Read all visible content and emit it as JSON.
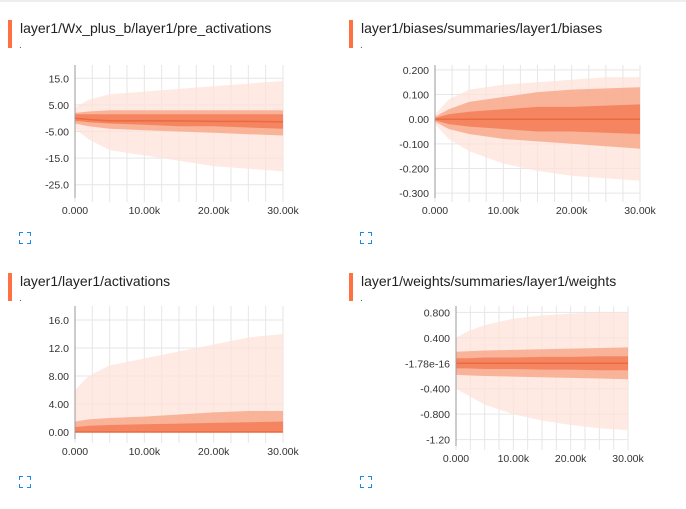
{
  "colors": {
    "accent": "#ff7043",
    "band_outer": "#fde2da",
    "band_mid": "#f8a98c",
    "band_inner": "#f4805b",
    "median": "#ec6a3f",
    "grid": "#e6e6e6",
    "axis": "#999999"
  },
  "icons": {
    "expand": "fullscreen-expand-icon"
  },
  "chart_data": [
    {
      "type": "area",
      "title": "layer1/Wx_plus_b/layer1/pre_activations",
      "subtitle": ".",
      "x_ticks": [
        "0.000",
        "10.00k",
        "20.00k",
        "30.00k"
      ],
      "y_ticks": [
        "15.0",
        "5.00",
        "-5.00",
        "-15.0",
        "-25.0"
      ],
      "y_tick_values": [
        15,
        5,
        -5,
        -15,
        -25
      ],
      "xlim": [
        0,
        30000
      ],
      "ylim": [
        -30,
        20
      ],
      "x": [
        0,
        2000,
        5000,
        10000,
        15000,
        20000,
        25000,
        30000
      ],
      "bands": [
        {
          "lower": [
            -4,
            -8,
            -12,
            -14,
            -16,
            -18,
            -19,
            -20
          ],
          "upper": [
            4,
            7,
            9,
            10,
            11,
            12,
            13,
            14
          ]
        },
        {
          "lower": [
            -2,
            -3,
            -4,
            -4.5,
            -5,
            -5.5,
            -6,
            -6.5
          ],
          "upper": [
            2,
            2.5,
            3,
            3,
            3,
            3,
            3,
            3
          ]
        },
        {
          "lower": [
            -1,
            -1.5,
            -2,
            -2.5,
            -3,
            -3,
            -3.5,
            -4
          ],
          "upper": [
            1.5,
            1.5,
            1.5,
            1.5,
            1.5,
            1.5,
            1.5,
            1.5
          ]
        }
      ],
      "median": [
        0,
        -0.5,
        -1,
        -1,
        -1,
        -1.2,
        -1.2,
        -1.3
      ]
    },
    {
      "type": "area",
      "title": "layer1/biases/summaries/layer1/biases",
      "subtitle": ".",
      "x_ticks": [
        "0.000",
        "10.00k",
        "20.00k",
        "30.00k"
      ],
      "y_ticks": [
        "0.200",
        "0.100",
        "0.00",
        "-0.100",
        "-0.200",
        "-0.300"
      ],
      "y_tick_values": [
        0.2,
        0.1,
        0,
        -0.1,
        -0.2,
        -0.3
      ],
      "xlim": [
        0,
        30000
      ],
      "ylim": [
        -0.32,
        0.22
      ],
      "x": [
        0,
        2000,
        5000,
        10000,
        15000,
        20000,
        25000,
        30000
      ],
      "bands": [
        {
          "lower": [
            -0.02,
            -0.08,
            -0.13,
            -0.18,
            -0.21,
            -0.23,
            -0.24,
            -0.25
          ],
          "upper": [
            0.02,
            0.08,
            0.12,
            0.14,
            0.15,
            0.16,
            0.17,
            0.17
          ]
        },
        {
          "lower": [
            -0.01,
            -0.04,
            -0.06,
            -0.08,
            -0.09,
            -0.1,
            -0.11,
            -0.12
          ],
          "upper": [
            0.01,
            0.04,
            0.07,
            0.09,
            0.11,
            0.12,
            0.125,
            0.13
          ]
        },
        {
          "lower": [
            -0.005,
            -0.02,
            -0.03,
            -0.04,
            -0.05,
            -0.05,
            -0.055,
            -0.06
          ],
          "upper": [
            0.005,
            0.02,
            0.03,
            0.04,
            0.05,
            0.05,
            0.055,
            0.06
          ]
        }
      ],
      "median": [
        0,
        0,
        0,
        0,
        0,
        0,
        0,
        0
      ]
    },
    {
      "type": "area",
      "title": "layer1/layer1/activations",
      "subtitle": ".",
      "x_ticks": [
        "0.000",
        "10.00k",
        "20.00k",
        "30.00k"
      ],
      "y_ticks": [
        "16.0",
        "12.0",
        "8.00",
        "4.00",
        "0.00"
      ],
      "y_tick_values": [
        16,
        12,
        8,
        4,
        0
      ],
      "xlim": [
        0,
        30000
      ],
      "ylim": [
        -1,
        18
      ],
      "x": [
        0,
        2000,
        5000,
        10000,
        15000,
        20000,
        25000,
        30000
      ],
      "bands": [
        {
          "lower": [
            0,
            0,
            0,
            0,
            0,
            0,
            0,
            0
          ],
          "upper": [
            6,
            8,
            9.5,
            10.5,
            11.5,
            12.5,
            13.5,
            14
          ]
        },
        {
          "lower": [
            0,
            0,
            0,
            0,
            0,
            0,
            0,
            0
          ],
          "upper": [
            1.5,
            1.8,
            2,
            2.2,
            2.5,
            2.8,
            3,
            3
          ]
        },
        {
          "lower": [
            0,
            0,
            0,
            0,
            0,
            0,
            0,
            0
          ],
          "upper": [
            0.7,
            0.9,
            1,
            1.1,
            1.2,
            1.3,
            1.4,
            1.5
          ]
        }
      ],
      "median": [
        0,
        0,
        0,
        0,
        0,
        0,
        0,
        0
      ]
    },
    {
      "type": "area",
      "title": "layer1/weights/summaries/layer1/weights",
      "subtitle": ".",
      "x_ticks": [
        "0.000",
        "10.00k",
        "20.00k",
        "30.00k"
      ],
      "y_ticks": [
        "0.800",
        "0.400",
        "-1.78e-16",
        "-0.400",
        "-0.800",
        "-1.20"
      ],
      "y_tick_values": [
        0.8,
        0.4,
        0,
        -0.4,
        -0.8,
        -1.2
      ],
      "xlim": [
        0,
        30000
      ],
      "ylim": [
        -1.3,
        0.9
      ],
      "x": [
        0,
        2000,
        5000,
        10000,
        15000,
        20000,
        25000,
        30000
      ],
      "bands": [
        {
          "lower": [
            -0.4,
            -0.5,
            -0.65,
            -0.8,
            -0.9,
            -0.97,
            -1.02,
            -1.05
          ],
          "upper": [
            0.4,
            0.5,
            0.6,
            0.7,
            0.75,
            0.78,
            0.8,
            0.8
          ]
        },
        {
          "lower": [
            -0.18,
            -0.19,
            -0.2,
            -0.21,
            -0.22,
            -0.23,
            -0.24,
            -0.25
          ],
          "upper": [
            0.18,
            0.19,
            0.2,
            0.21,
            0.22,
            0.23,
            0.24,
            0.25
          ]
        },
        {
          "lower": [
            -0.08,
            -0.08,
            -0.09,
            -0.09,
            -0.1,
            -0.1,
            -0.11,
            -0.11
          ],
          "upper": [
            0.08,
            0.08,
            0.09,
            0.09,
            0.1,
            0.1,
            0.11,
            0.11
          ]
        }
      ],
      "median": [
        0,
        0,
        0,
        0,
        0,
        0,
        0,
        0
      ]
    }
  ]
}
